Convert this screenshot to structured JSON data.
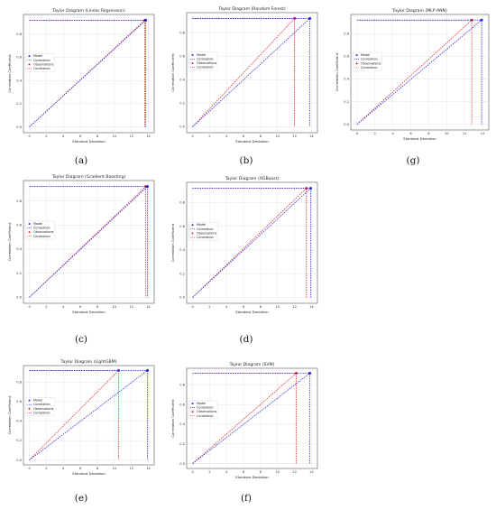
{
  "figure": {
    "panels": [
      {
        "id": "a",
        "label": "(a)",
        "title": "Taylor Diagram (Linear Regression)",
        "xlabel": "Standard Deviation",
        "ylabel": "Correlation Coefficient",
        "xticks": [
          0,
          2,
          4,
          6,
          8,
          10,
          12,
          14
        ],
        "yticks": [
          "0.0",
          "0.2",
          "0.4",
          "0.6",
          "0.8"
        ],
        "legend": [
          "Model",
          "Correlation",
          "Observations",
          "Correlation"
        ]
      },
      {
        "id": "b",
        "label": "(b)",
        "title": "Taylor Diagram (Random Forest)",
        "xlabel": "Standard Deviation",
        "ylabel": "Correlation Coefficient",
        "xticks": [
          0,
          2,
          4,
          6,
          8,
          10,
          12,
          14
        ],
        "yticks": [
          "0.0",
          "0.2",
          "0.4",
          "0.6",
          "0.8"
        ],
        "legend": [
          "Model",
          "Correlation",
          "Observations",
          "Correlation"
        ]
      },
      {
        "id": "g",
        "label": "(g)",
        "title": "Taylor Diagram (MLP-ANN)",
        "xlabel": "Standard Deviation",
        "ylabel": "Correlation Coefficient",
        "xticks": [
          0,
          2,
          4,
          6,
          8,
          10,
          12,
          14
        ],
        "yticks": [
          "0.0",
          "0.2",
          "0.4",
          "0.6",
          "0.8"
        ],
        "legend": [
          "Model",
          "Correlation",
          "Observations",
          "Correlation"
        ]
      },
      {
        "id": "c",
        "label": "(c)",
        "title": "Taylor Diagram (Gradient Boosting)",
        "xlabel": "Standard Deviation",
        "ylabel": "Correlation Coefficient",
        "xticks": [
          0,
          2,
          4,
          6,
          8,
          10,
          12,
          14
        ],
        "yticks": [
          "0.0",
          "0.2",
          "0.4",
          "0.6",
          "0.8"
        ],
        "legend": [
          "Model",
          "Correlation",
          "Observations",
          "Correlation"
        ]
      },
      {
        "id": "d",
        "label": "(d)",
        "title": "Taylor Diagram (XGBoost)",
        "xlabel": "Standard Deviation",
        "ylabel": "Correlation Coefficient",
        "xticks": [
          0,
          2,
          4,
          6,
          8,
          10,
          12,
          14
        ],
        "yticks": [
          "0.0",
          "0.2",
          "0.4",
          "0.6",
          "0.8"
        ],
        "legend": [
          "Model",
          "Correlation",
          "Observations",
          "Correlation"
        ]
      },
      {
        "id": "e",
        "label": "(e)",
        "title": "Taylor Diagram (LightGBM)",
        "xlabel": "Standard Deviation",
        "ylabel": "Correlation Coefficient",
        "xticks": [
          0,
          2,
          4,
          6,
          8,
          10,
          12,
          14
        ],
        "yticks": [
          "0.0",
          "0.2",
          "0.4",
          "0.6",
          "0.8"
        ],
        "legend": [
          "Model",
          "Correlation",
          "Observations",
          "Correlation"
        ]
      },
      {
        "id": "f",
        "label": "(f)",
        "title": "Taylor Diagram (SVM)",
        "xlabel": "Standard Deviation",
        "ylabel": "Correlation Coefficient",
        "xticks": [
          0,
          2,
          4,
          6,
          8,
          10,
          12,
          14
        ],
        "yticks": [
          "0.0",
          "0.2",
          "0.4",
          "0.6",
          "0.8"
        ],
        "legend": [
          "Model",
          "Correlation",
          "Observations",
          "Correlation"
        ]
      }
    ]
  },
  "colors": {
    "model": "#1f1fe0",
    "observations": "#e01f1f",
    "grid": "#dddddd",
    "axis": "#333333"
  },
  "chart_data": [
    {
      "id": "a",
      "type": "scatter",
      "title": "Taylor Diagram (Linear Regression)",
      "xlabel": "Standard Deviation",
      "ylabel": "Correlation Coefficient",
      "xlim": [
        -0.7,
        14.7
      ],
      "ylim": [
        -0.05,
        0.97
      ],
      "grid": true,
      "legend_position": "center-left",
      "series": [
        {
          "name": "Model",
          "std": 13.7,
          "corr": 0.92
        },
        {
          "name": "Observations",
          "std": 13.6,
          "corr": 0.92
        }
      ]
    },
    {
      "id": "b",
      "type": "scatter",
      "title": "Taylor Diagram (Random Forest)",
      "xlabel": "Standard Deviation",
      "ylabel": "Correlation Coefficient",
      "xlim": [
        -0.7,
        14.7
      ],
      "ylim": [
        -0.05,
        0.97
      ],
      "grid": true,
      "legend_position": "center-left",
      "series": [
        {
          "name": "Model",
          "std": 13.8,
          "corr": 0.92
        },
        {
          "name": "Observations",
          "std": 12.0,
          "corr": 0.92
        }
      ]
    },
    {
      "id": "g",
      "type": "scatter",
      "title": "Taylor Diagram (MLP-ANN)",
      "xlabel": "Standard Deviation",
      "ylabel": "Correlation Coefficient",
      "xlim": [
        -0.7,
        14.7
      ],
      "ylim": [
        -0.05,
        0.97
      ],
      "grid": true,
      "legend_position": "center-left",
      "series": [
        {
          "name": "Model",
          "std": 13.9,
          "corr": 0.92
        },
        {
          "name": "Observations",
          "std": 12.8,
          "corr": 0.92
        }
      ]
    },
    {
      "id": "c",
      "type": "scatter",
      "title": "Taylor Diagram (Gradient Boosting)",
      "xlabel": "Standard Deviation",
      "ylabel": "Correlation Coefficient",
      "xlim": [
        -0.7,
        14.7
      ],
      "ylim": [
        -0.05,
        0.97
      ],
      "grid": true,
      "legend_position": "center-left",
      "series": [
        {
          "name": "Model",
          "std": 13.9,
          "corr": 0.92
        },
        {
          "name": "Observations",
          "std": 13.7,
          "corr": 0.92
        }
      ]
    },
    {
      "id": "d",
      "type": "scatter",
      "title": "Taylor Diagram (XGBoost)",
      "xlabel": "Standard Deviation",
      "ylabel": "Correlation Coefficient",
      "xlim": [
        -0.7,
        14.7
      ],
      "ylim": [
        -0.05,
        0.97
      ],
      "grid": true,
      "legend_position": "center-left",
      "series": [
        {
          "name": "Model",
          "std": 13.9,
          "corr": 0.92
        },
        {
          "name": "Observations",
          "std": 13.4,
          "corr": 0.92
        }
      ]
    },
    {
      "id": "e",
      "type": "scatter",
      "title": "Taylor Diagram (LightGBM)",
      "xlabel": "Standard Deviation",
      "ylabel": "Correlation Coefficient",
      "xlim": [
        -0.7,
        14.7
      ],
      "ylim": [
        -0.05,
        0.97
      ],
      "grid": true,
      "legend_position": "center-left",
      "series": [
        {
          "name": "Model",
          "std": 13.9,
          "corr": 0.92
        },
        {
          "name": "Observations",
          "std": 10.5,
          "corr": 0.92
        }
      ]
    },
    {
      "id": "f",
      "type": "scatter",
      "title": "Taylor Diagram (SVM)",
      "xlabel": "Standard Deviation",
      "ylabel": "Correlation Coefficient",
      "xlim": [
        -0.7,
        14.7
      ],
      "ylim": [
        -0.05,
        0.97
      ],
      "grid": true,
      "legend_position": "center-left",
      "series": [
        {
          "name": "Model",
          "std": 13.8,
          "corr": 0.92
        },
        {
          "name": "Observations",
          "std": 12.2,
          "corr": 0.92
        }
      ]
    }
  ]
}
